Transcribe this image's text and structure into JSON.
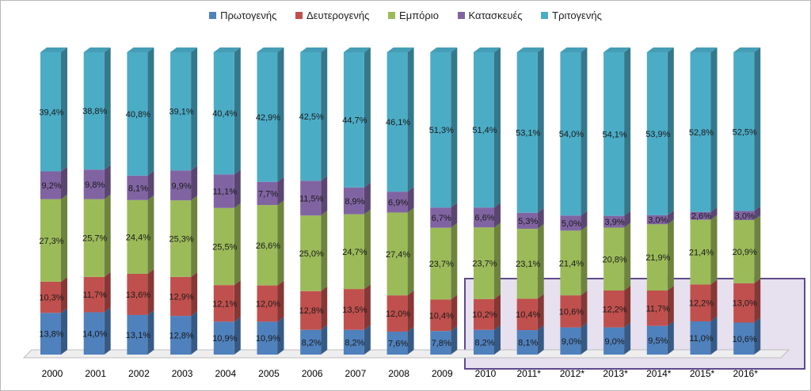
{
  "chart_data": {
    "type": "bar",
    "stacked": true,
    "percent_stacked": true,
    "three_d": true,
    "legend_position": "top",
    "categories": [
      "2000",
      "2001",
      "2002",
      "2003",
      "2004",
      "2005",
      "2006",
      "2007",
      "2008",
      "2009",
      "2010",
      "2011*",
      "2012*",
      "2013*",
      "2014*",
      "2015*",
      "2016*"
    ],
    "series": [
      {
        "name": "Πρωτογενής",
        "color": "#4f81bd",
        "values": [
          13.8,
          14.0,
          13.1,
          12.8,
          10.9,
          10.9,
          8.2,
          8.2,
          7.6,
          7.8,
          8.2,
          8.1,
          9.0,
          9.0,
          9.5,
          11.0,
          10.6
        ],
        "labels": [
          "13,8%",
          "14,0%",
          "13,1%",
          "12,8%",
          "10,9%",
          "10,9%",
          "8,2%",
          "8,2%",
          "7,6%",
          "7,8%",
          "8,2%",
          "8,1%",
          "9,0%",
          "9,0%",
          "9,5%",
          "11,0%",
          "10,6%"
        ]
      },
      {
        "name": "Δευτερογενής",
        "color": "#c0504d",
        "values": [
          10.3,
          11.7,
          13.6,
          12.9,
          12.1,
          12.0,
          12.8,
          13.5,
          12.0,
          10.4,
          10.2,
          10.4,
          10.6,
          12.2,
          11.7,
          12.2,
          13.0
        ],
        "labels": [
          "10,3%",
          "11,7%",
          "13,6%",
          "12,9%",
          "12,1%",
          "12,0%",
          "12,8%",
          "13,5%",
          "12,0%",
          "10,4%",
          "10,2%",
          "10,4%",
          "10,6%",
          "12,2%",
          "11,7%",
          "12,2%",
          "13,0%"
        ]
      },
      {
        "name": "Εμπόριο",
        "color": "#9bbb59",
        "values": [
          27.3,
          25.7,
          24.4,
          25.3,
          25.5,
          26.6,
          25.0,
          24.7,
          27.4,
          23.7,
          23.7,
          23.1,
          21.4,
          20.8,
          21.9,
          21.4,
          20.9
        ],
        "labels": [
          "27,3%",
          "25,7%",
          "24,4%",
          "25,3%",
          "25,5%",
          "26,6%",
          "25,0%",
          "24,7%",
          "27,4%",
          "23,7%",
          "23,7%",
          "23,1%",
          "21,4%",
          "20,8%",
          "21,9%",
          "21,4%",
          "20,9%"
        ]
      },
      {
        "name": "Κατασκευές",
        "color": "#8064a2",
        "values": [
          9.2,
          9.8,
          8.1,
          9.9,
          11.1,
          7.7,
          11.5,
          8.9,
          6.9,
          6.7,
          6.6,
          5.3,
          5.0,
          3.9,
          3.0,
          2.6,
          3.0
        ],
        "labels": [
          "9,2%",
          "9,8%",
          "8,1%",
          "9,9%",
          "11,1%",
          "7,7%",
          "11,5%",
          "8,9%",
          "6,9%",
          "6,7%",
          "6,6%",
          "5,3%",
          "5,0%",
          "3,9%",
          "3,0%",
          "2,6%",
          "3,0%"
        ]
      },
      {
        "name": "Τριτογενής",
        "color": "#4bacc6",
        "values": [
          39.4,
          38.8,
          40.8,
          39.1,
          40.4,
          42.9,
          42.5,
          44.7,
          46.1,
          51.3,
          51.4,
          53.1,
          54.0,
          54.1,
          53.9,
          52.8,
          52.5
        ],
        "labels": [
          "39,4%",
          "38,8%",
          "40,8%",
          "39,1%",
          "40,4%",
          "42,9%",
          "42,5%",
          "44,7%",
          "46,1%",
          "51,3%",
          "51,4%",
          "53,1%",
          "54,0%",
          "54,1%",
          "53,9%",
          "52,8%",
          "52,5%"
        ]
      }
    ],
    "highlight": {
      "from_category": "2010",
      "to_category": "2016*",
      "fill": "#e6e0ef",
      "stroke": "#5f4b8b"
    }
  }
}
